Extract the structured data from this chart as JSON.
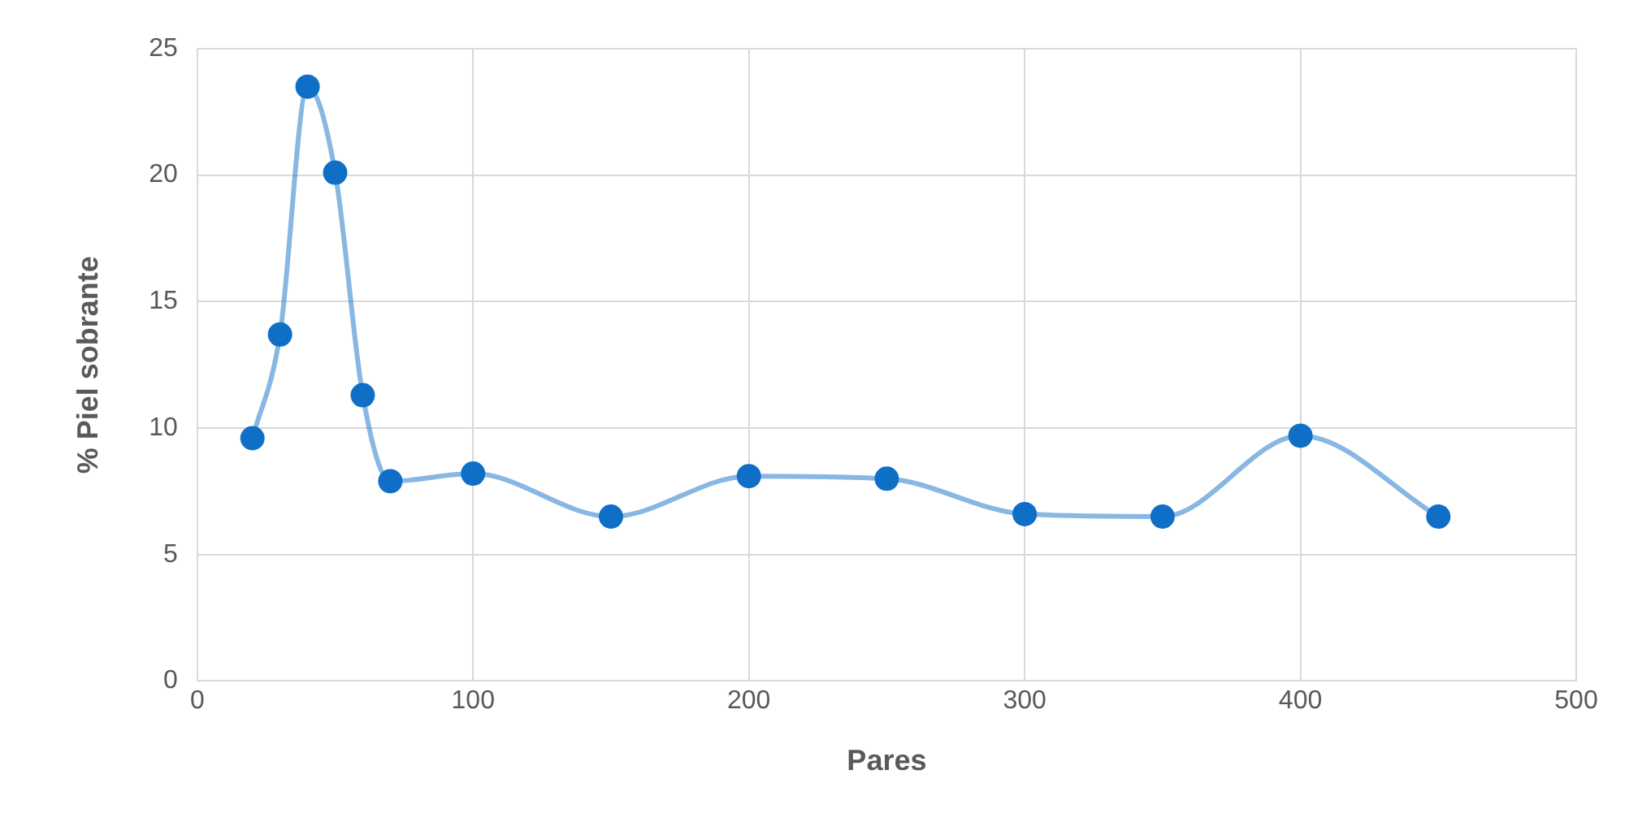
{
  "chart_data": {
    "type": "line",
    "xlabel": "Pares",
    "ylabel": "% Piel sobrante",
    "x": [
      20,
      30,
      40,
      50,
      60,
      70,
      100,
      150,
      200,
      250,
      300,
      350,
      400,
      450
    ],
    "series": [
      {
        "color": "#0f6fc6",
        "values": [
          9.6,
          13.7,
          23.5,
          20.1,
          11.3,
          7.9,
          8.2,
          6.5,
          8.1,
          8.0,
          6.6,
          6.5,
          9.7,
          6.5
        ]
      }
    ],
    "xlim": [
      0,
      500
    ],
    "xticks": [
      0,
      100,
      200,
      300,
      400,
      500
    ],
    "ylim": [
      0,
      25
    ],
    "yticks": [
      0,
      5,
      10,
      15,
      20,
      25
    ],
    "grid": true,
    "legend": false,
    "marker": "circle",
    "line_style": "solid"
  }
}
